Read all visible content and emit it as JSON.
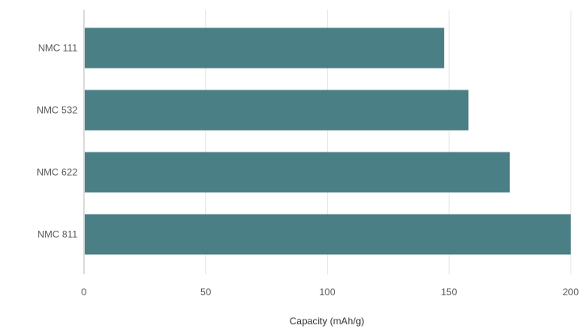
{
  "chart_data": {
    "type": "bar",
    "orientation": "horizontal",
    "categories": [
      "NMC 111",
      "NMC 532",
      "NMC 622",
      "NMC 811"
    ],
    "values": [
      148,
      158,
      175,
      200
    ],
    "xlabel": "Capacity (mAh/g)",
    "ylabel": "",
    "xlim": [
      0,
      200
    ],
    "xticks": [
      "0",
      "50",
      "100",
      "150",
      "200"
    ],
    "grid": true,
    "legend": "none",
    "bar_color": "#4a7f86",
    "grid_color": "#e6e6e6",
    "axis_color": "#cfcfcf"
  }
}
